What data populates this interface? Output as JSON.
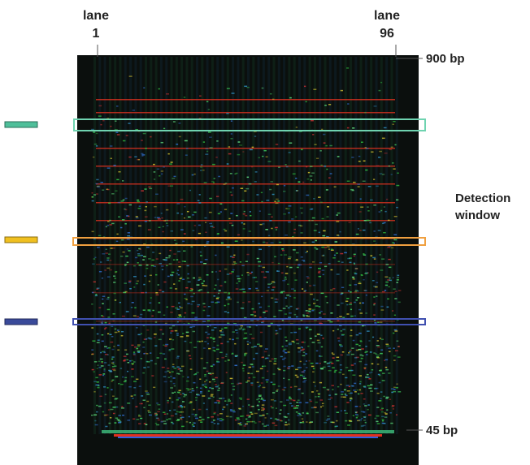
{
  "lanes": [
    {
      "label": "lane",
      "number": "1"
    },
    {
      "label": "lane",
      "number": "96"
    }
  ],
  "size_markers": [
    "900 bp",
    "45 bp"
  ],
  "annotation": [
    "Detection",
    "window"
  ]
}
